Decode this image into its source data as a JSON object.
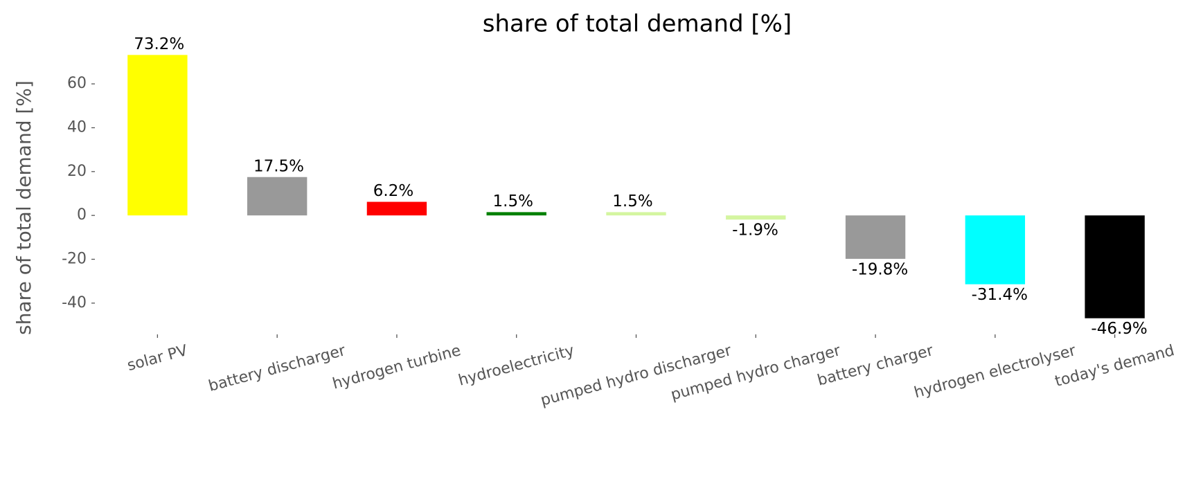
{
  "chart_data": {
    "type": "bar",
    "title": "share of total demand [%]",
    "y_label": "share of total demand [%]",
    "categories": [
      "solar PV",
      "battery discharger",
      "hydrogen turbine",
      "hydroelectricity",
      "pumped hydro discharger",
      "pumped hydro charger",
      "battery charger",
      "hydrogen electrolyser",
      "today's demand"
    ],
    "values": [
      73.2,
      17.5,
      6.2,
      1.5,
      1.5,
      -1.9,
      -19.8,
      -31.4,
      -46.9
    ],
    "value_labels": [
      "73.2%",
      "17.5%",
      "6.2%",
      "1.5%",
      "1.5%",
      "-1.9%",
      "-19.8%",
      "-31.4%",
      "-46.9%"
    ],
    "colors": [
      "#ffff00",
      "#999999",
      "#ff0000",
      "#008000",
      "#d4f5a0",
      "#d4f5a0",
      "#999999",
      "#00ffff",
      "#000000"
    ],
    "ylim": [
      -53,
      79
    ],
    "yticks": [
      -40,
      -20,
      0,
      20,
      40,
      60
    ],
    "grid": false
  }
}
